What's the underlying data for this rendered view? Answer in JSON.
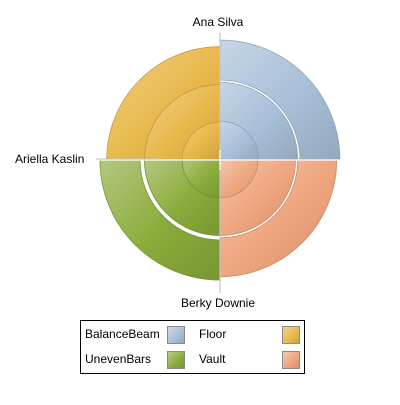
{
  "chart_data": {
    "type": "sunburst",
    "title": "",
    "categories": [
      "BalanceBeam",
      "UnevenBars",
      "Floor",
      "Vault"
    ],
    "series": [
      {
        "name": "Ana Silva",
        "values": [
          0.7,
          0.72,
          0.72,
          0.72
        ]
      },
      {
        "name": "Ariella Kaslin",
        "values": [
          0.7,
          0.68,
          0.68,
          0.68
        ]
      },
      {
        "name": "Berky Downie",
        "values": [
          0.72,
          0.72,
          0.68,
          0.7
        ]
      }
    ],
    "legend": {
      "position": "bottom",
      "items": [
        {
          "label": "BalanceBeam",
          "color": "#a7bfd8"
        },
        {
          "label": "Floor",
          "color": "#e8b84a"
        },
        {
          "label": "UnevenBars",
          "color": "#8aab3a"
        },
        {
          "label": "Vault",
          "color": "#eea47c"
        }
      ]
    },
    "colors": {
      "BalanceBeam": "#a7bfd8",
      "UnevenBars": "#8aab3a",
      "Floor": "#e8b84a",
      "Vault": "#eea47c"
    }
  }
}
